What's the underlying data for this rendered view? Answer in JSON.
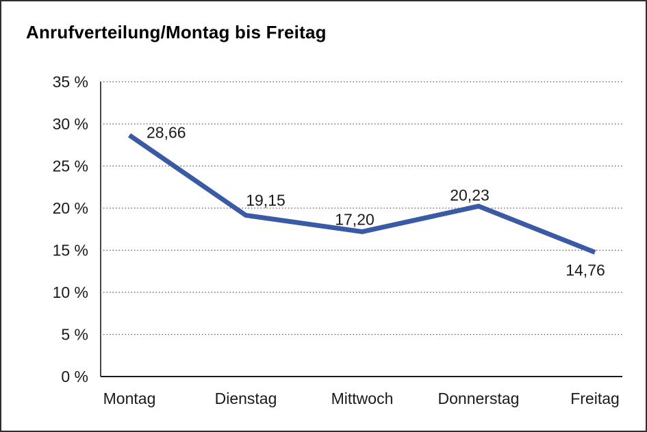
{
  "title": "Anrufverteilung/Montag bis Freitag",
  "chart_data": {
    "type": "line",
    "title": "Anrufverteilung/Montag bis Freitag",
    "categories": [
      "Montag",
      "Dienstag",
      "Mittwoch",
      "Donnerstag",
      "Freitag"
    ],
    "values": [
      28.66,
      19.15,
      17.2,
      20.23,
      14.76
    ],
    "value_labels": [
      "28,66",
      "19,15",
      "17,20",
      "20,23",
      "14,76"
    ],
    "xlabel": "",
    "ylabel": "",
    "ylim": [
      0,
      35
    ],
    "ytick_step": 5,
    "ytick_labels": [
      "0 %",
      "5 %",
      "10 %",
      "15 %",
      "20 %",
      "25 %",
      "30 %",
      "35 %"
    ],
    "grid": "horizontal-dotted",
    "legend": "none",
    "line_color": "#3A5AA5",
    "axis_color": "#1a1a1a",
    "grid_color": "#555555",
    "text_color": "#1a1a1a"
  }
}
